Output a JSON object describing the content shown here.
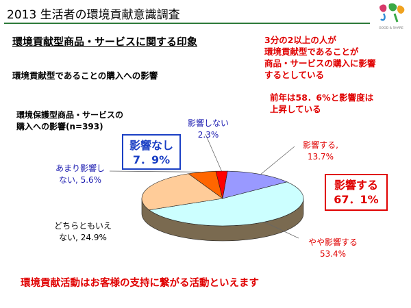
{
  "slide_title": "2013 生活者の環境貢献意識調査",
  "headline": "環境貢献型商品・サービスに関する印象",
  "subhead": "環境貢献型であることの購入への影響",
  "chart_caption": [
    "環境保護型商品・サービスの",
    "購入への影響(n=393)"
  ],
  "note_top": [
    "3分の2以上の人が",
    "環境貢献型であることが",
    "商品・サービスの購入に影響",
    "するとしている"
  ],
  "note_prev": [
    "前年は58．6%と影響度は",
    "上昇している"
  ],
  "callout_positive": [
    "影響する",
    "67．1%"
  ],
  "callout_negative": [
    "影響なし",
    "7．9%"
  ],
  "bottom_message": "環境貢献活動はお客様の支持に繋がる活動といえます",
  "logo_text": "GOOD & SHARE",
  "chart_data": {
    "type": "pie",
    "title": "環境保護型商品・サービスの購入への影響(n=393)",
    "n": 393,
    "unit": "%",
    "slices": [
      {
        "label": "影響する",
        "value": 13.7,
        "value_text": "13.7%",
        "color": "#9999ff"
      },
      {
        "label": "やや影響する",
        "value": 53.4,
        "value_text": "53.4%",
        "color": "#ccffff"
      },
      {
        "label": "どちらともいえない",
        "value": 24.9,
        "value_text": "24.9%",
        "color": "#ffcc99"
      },
      {
        "label": "あまり影響しない",
        "value": 5.6,
        "value_text": "5.6%",
        "color": "#ff6600"
      },
      {
        "label": "影響しない",
        "value": 2.3,
        "value_text": "2.3%",
        "color": "#ff0000"
      }
    ],
    "labels": {
      "dont": [
        "影響しない",
        "2.3%"
      ],
      "notmuch": [
        "あまり影響し",
        "ない, 5.6%"
      ],
      "neither": [
        "どちらともいえ",
        "ない, 24.9%"
      ],
      "affect": [
        "影響する,",
        "13.7%"
      ],
      "some": [
        "やや影響する",
        "53.4%"
      ]
    },
    "colors": {
      "side": "#7a6a50",
      "outline": "#222222"
    }
  }
}
